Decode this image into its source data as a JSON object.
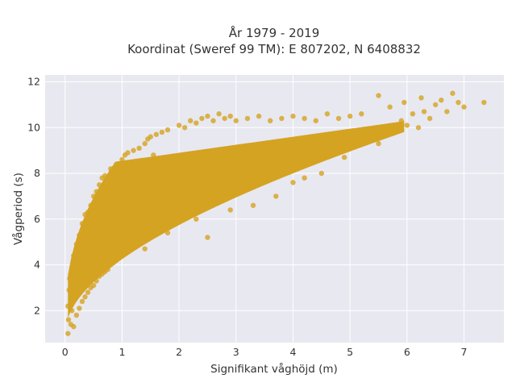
{
  "chart_data": {
    "type": "scatter",
    "title_line1": "År 1979 - 2019",
    "title_line2": "Koordinat (Sweref 99 TM): E 807202, N 6408832",
    "xlabel": "Signifikant våghöjd (m)",
    "ylabel": "Vågperiod (s)",
    "xlim": [
      -0.35,
      7.7
    ],
    "ylim": [
      0.6,
      12.3
    ],
    "xticks": [
      0,
      1,
      2,
      3,
      4,
      5,
      6,
      7
    ],
    "yticks": [
      2,
      4,
      6,
      8,
      10,
      12
    ],
    "grid": true,
    "legend": "none",
    "colors": {
      "marker": "#d4a321",
      "plot_bg": "#e8e8f0",
      "grid": "#ffffff"
    },
    "points": [
      [
        0.05,
        1.0
      ],
      [
        0.06,
        1.6
      ],
      [
        0.05,
        2.2
      ],
      [
        0.07,
        2.9
      ],
      [
        0.08,
        3.4
      ],
      [
        0.1,
        1.4
      ],
      [
        0.12,
        2.0
      ],
      [
        0.12,
        3.8
      ],
      [
        0.15,
        1.3
      ],
      [
        0.15,
        4.4
      ],
      [
        0.2,
        1.8
      ],
      [
        0.2,
        4.9
      ],
      [
        0.25,
        2.1
      ],
      [
        0.25,
        5.3
      ],
      [
        0.3,
        2.4
      ],
      [
        0.3,
        5.8
      ],
      [
        0.35,
        2.6
      ],
      [
        0.35,
        6.2
      ],
      [
        0.4,
        2.8
      ],
      [
        0.4,
        6.3
      ],
      [
        0.45,
        3.0
      ],
      [
        0.45,
        6.6
      ],
      [
        0.5,
        3.1
      ],
      [
        0.5,
        7.0
      ],
      [
        0.55,
        3.3
      ],
      [
        0.55,
        7.2
      ],
      [
        0.6,
        3.5
      ],
      [
        0.6,
        7.5
      ],
      [
        0.65,
        3.6
      ],
      [
        0.65,
        7.8
      ],
      [
        0.7,
        3.7
      ],
      [
        0.7,
        7.9
      ],
      [
        0.75,
        3.8
      ],
      [
        0.8,
        4.0
      ],
      [
        0.8,
        8.2
      ],
      [
        0.85,
        4.1
      ],
      [
        0.9,
        4.2
      ],
      [
        0.9,
        8.4
      ],
      [
        1.0,
        4.4
      ],
      [
        1.0,
        8.6
      ],
      [
        1.05,
        8.8
      ],
      [
        1.1,
        4.6
      ],
      [
        1.1,
        8.9
      ],
      [
        1.2,
        4.8
      ],
      [
        1.2,
        9.0
      ],
      [
        1.3,
        5.0
      ],
      [
        1.3,
        9.1
      ],
      [
        1.4,
        5.2
      ],
      [
        1.4,
        9.3
      ],
      [
        1.45,
        9.5
      ],
      [
        1.5,
        5.3
      ],
      [
        1.5,
        9.6
      ],
      [
        1.55,
        8.8
      ],
      [
        1.6,
        5.5
      ],
      [
        1.6,
        9.7
      ],
      [
        1.7,
        5.6
      ],
      [
        1.7,
        9.8
      ],
      [
        1.8,
        5.8
      ],
      [
        1.8,
        9.9
      ],
      [
        1.9,
        5.9
      ],
      [
        2.0,
        6.0
      ],
      [
        2.0,
        10.1
      ],
      [
        2.1,
        6.1
      ],
      [
        2.1,
        10.0
      ],
      [
        2.2,
        6.2
      ],
      [
        2.2,
        10.3
      ],
      [
        2.3,
        6.4
      ],
      [
        2.3,
        10.2
      ],
      [
        2.4,
        6.5
      ],
      [
        2.4,
        10.4
      ],
      [
        2.5,
        6.6
      ],
      [
        2.5,
        10.5
      ],
      [
        2.6,
        6.8
      ],
      [
        2.6,
        10.3
      ],
      [
        2.7,
        6.9
      ],
      [
        2.7,
        10.6
      ],
      [
        2.8,
        7.0
      ],
      [
        2.8,
        10.4
      ],
      [
        2.9,
        7.1
      ],
      [
        2.9,
        10.5
      ],
      [
        3.0,
        7.2
      ],
      [
        3.0,
        10.3
      ],
      [
        3.1,
        7.3
      ],
      [
        3.2,
        7.4
      ],
      [
        3.2,
        10.4
      ],
      [
        3.3,
        7.5
      ],
      [
        3.4,
        7.6
      ],
      [
        3.4,
        10.5
      ],
      [
        3.5,
        7.7
      ],
      [
        3.6,
        7.8
      ],
      [
        3.6,
        10.3
      ],
      [
        3.7,
        7.9
      ],
      [
        3.8,
        8.0
      ],
      [
        3.8,
        10.4
      ],
      [
        3.9,
        8.1
      ],
      [
        4.0,
        8.2
      ],
      [
        4.0,
        10.5
      ],
      [
        4.1,
        8.3
      ],
      [
        4.2,
        8.4
      ],
      [
        4.2,
        10.4
      ],
      [
        4.3,
        8.5
      ],
      [
        4.4,
        8.6
      ],
      [
        4.4,
        10.3
      ],
      [
        4.5,
        8.7
      ],
      [
        4.6,
        8.8
      ],
      [
        4.6,
        10.6
      ],
      [
        4.7,
        8.9
      ],
      [
        4.8,
        9.0
      ],
      [
        4.8,
        10.4
      ],
      [
        4.9,
        9.1
      ],
      [
        5.0,
        9.2
      ],
      [
        5.0,
        10.5
      ],
      [
        5.1,
        9.3
      ],
      [
        5.2,
        9.4
      ],
      [
        5.2,
        10.6
      ],
      [
        5.3,
        9.5
      ],
      [
        5.4,
        9.6
      ],
      [
        5.5,
        9.7
      ],
      [
        5.5,
        11.4
      ],
      [
        5.6,
        9.8
      ],
      [
        5.7,
        9.9
      ],
      [
        5.7,
        10.9
      ],
      [
        5.8,
        10.0
      ],
      [
        5.9,
        10.3
      ],
      [
        5.95,
        11.1
      ],
      [
        6.0,
        10.1
      ],
      [
        6.1,
        10.6
      ],
      [
        6.2,
        10.0
      ],
      [
        6.25,
        11.3
      ],
      [
        6.3,
        10.7
      ],
      [
        6.4,
        10.4
      ],
      [
        6.5,
        11.0
      ],
      [
        6.6,
        11.2
      ],
      [
        6.7,
        10.7
      ],
      [
        6.8,
        11.5
      ],
      [
        6.9,
        11.1
      ],
      [
        7.0,
        10.9
      ],
      [
        7.35,
        11.1
      ],
      [
        1.4,
        4.7
      ],
      [
        1.8,
        5.4
      ],
      [
        2.3,
        6.0
      ],
      [
        2.5,
        5.2
      ],
      [
        2.9,
        6.4
      ],
      [
        3.3,
        6.6
      ],
      [
        3.7,
        7.0
      ],
      [
        4.0,
        7.6
      ],
      [
        4.2,
        7.8
      ],
      [
        4.5,
        8.0
      ],
      [
        4.9,
        8.7
      ],
      [
        5.5,
        9.3
      ]
    ]
  }
}
